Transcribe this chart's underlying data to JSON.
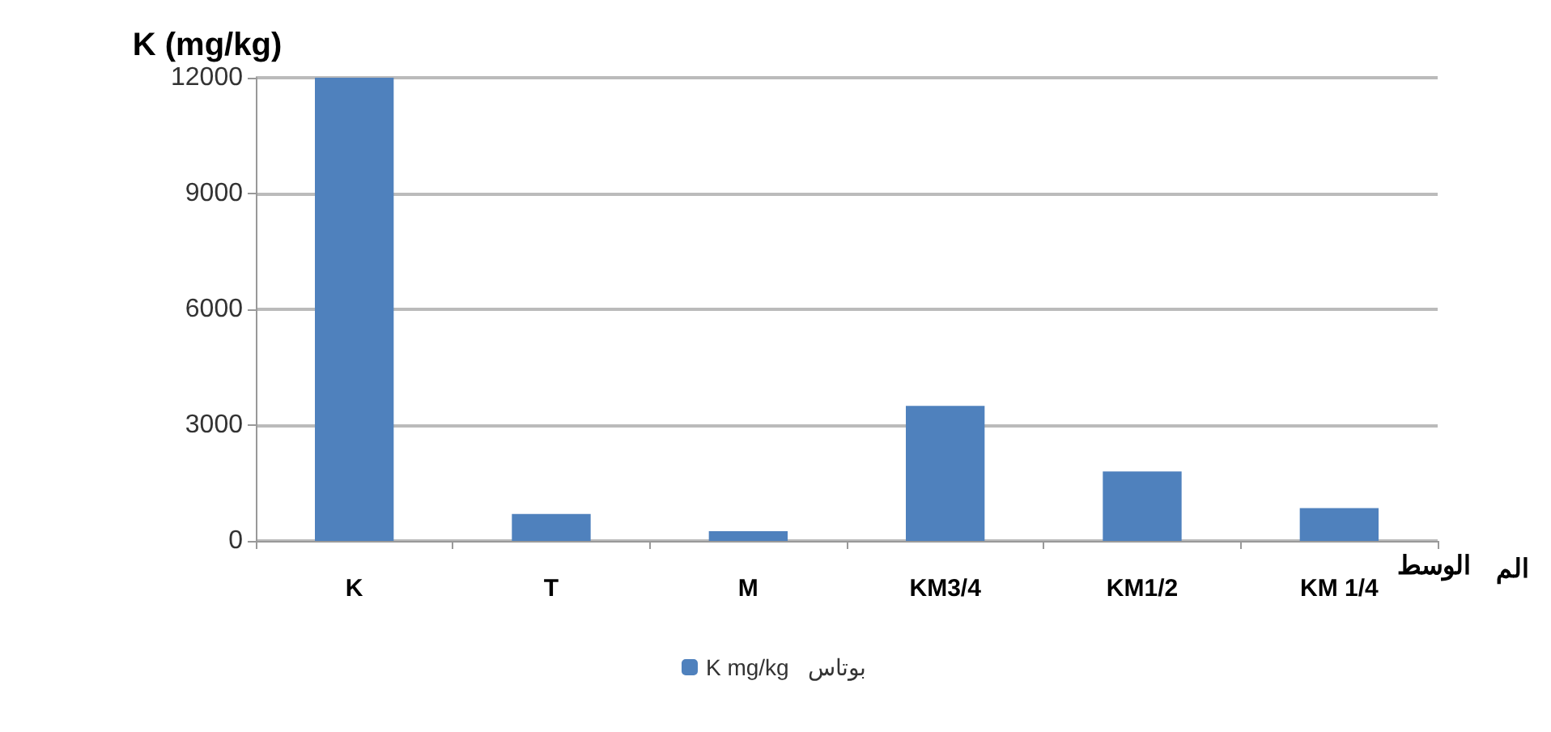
{
  "chart_data": {
    "type": "bar",
    "ylabel": "K (mg/kg)",
    "xlabel": "الوسط",
    "annotations": [
      "الم"
    ],
    "categories": [
      "K",
      "T",
      "M",
      "KM3/4",
      "KM1/2",
      "KM 1/4"
    ],
    "series": [
      {
        "name": "K mg/kg   بوتاس",
        "color": "#4f81bd",
        "values": [
          12000,
          700,
          250,
          3500,
          1800,
          850
        ]
      }
    ],
    "ylim": [
      0,
      12000
    ],
    "yticks": [
      0,
      3000,
      6000,
      9000,
      12000
    ],
    "grid": "y",
    "legend": "bottom"
  }
}
